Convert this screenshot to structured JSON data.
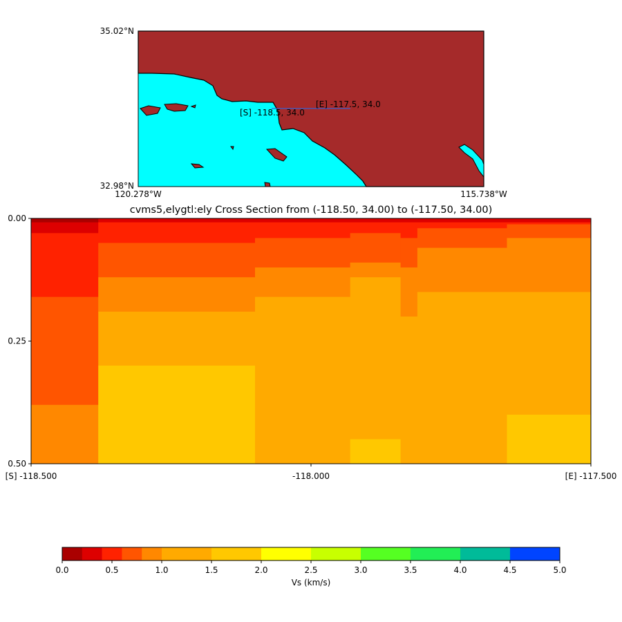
{
  "map": {
    "lat_top": "35.02°N",
    "lat_bottom": "32.98°N",
    "lon_left": "120.278°W",
    "lon_right": "115.738°W",
    "start_label": "[S] -118.5, 34.0",
    "end_label": "[E] -117.5, 34.0",
    "land_color": "#a52a2a",
    "water_color": "#00ffff",
    "line_color": "#3a5fcd"
  },
  "chart_data": {
    "type": "heatmap",
    "title": "cvms5,elygtl:ely Cross Section from (-118.50, 34.00) to (-117.50, 34.00)",
    "x_tick_labels": [
      "[S] -118.500",
      "-118.000",
      "[E] -117.500"
    ],
    "x_ticks": [
      -118.5,
      -118.0,
      -117.5
    ],
    "xlim": [
      -118.5,
      -117.5
    ],
    "y_tick_labels": [
      "0.00",
      "0.25",
      "0.50"
    ],
    "y_ticks": [
      0.0,
      0.25,
      0.5
    ],
    "ylim": [
      0.0,
      0.5
    ],
    "y_inverted": true,
    "colorbar": {
      "label": "Vs (km/s)",
      "tick_labels": [
        "0.0",
        "0.5",
        "1.0",
        "1.5",
        "2.0",
        "2.5",
        "3.0",
        "3.5",
        "4.0",
        "4.5",
        "5.0"
      ],
      "bounds": [
        0.0,
        0.2,
        0.4,
        0.6,
        0.8,
        1.0,
        1.5,
        2.0,
        2.5,
        3.0,
        3.5,
        4.0,
        4.5,
        5.0
      ],
      "colors": [
        "#aa0000",
        "#dd0000",
        "#ff2200",
        "#ff5500",
        "#ff8800",
        "#ffaa00",
        "#ffc800",
        "#ffff00",
        "#c8ff00",
        "#55ff22",
        "#22ee55",
        "#00bb99",
        "#0044ff"
      ]
    },
    "columns": [
      {
        "x0": -118.5,
        "x1": -118.38,
        "boundaries": [
          0.008,
          0.03,
          0.16,
          0.38,
          0.5
        ]
      },
      {
        "x0": -118.38,
        "x1": -118.1,
        "boundaries": [
          0.008,
          0.05,
          0.12,
          0.19,
          0.3,
          0.5
        ]
      },
      {
        "x0": -118.1,
        "x1": -117.93,
        "boundaries": [
          0.008,
          0.04,
          0.1,
          0.16,
          0.5
        ]
      },
      {
        "x0": -117.93,
        "x1": -117.84,
        "boundaries": [
          0.008,
          0.03,
          0.09,
          0.12,
          0.45,
          0.5
        ]
      },
      {
        "x0": -117.84,
        "x1": -117.81,
        "boundaries": [
          0.008,
          0.04,
          0.1,
          0.2,
          0.5
        ]
      },
      {
        "x0": -117.81,
        "x1": -117.65,
        "boundaries": [
          0.008,
          0.02,
          0.06,
          0.15,
          0.5
        ]
      },
      {
        "x0": -117.65,
        "x1": -117.5,
        "boundaries": [
          0.008,
          0.012,
          0.04,
          0.15,
          0.4,
          0.5
        ]
      }
    ]
  }
}
